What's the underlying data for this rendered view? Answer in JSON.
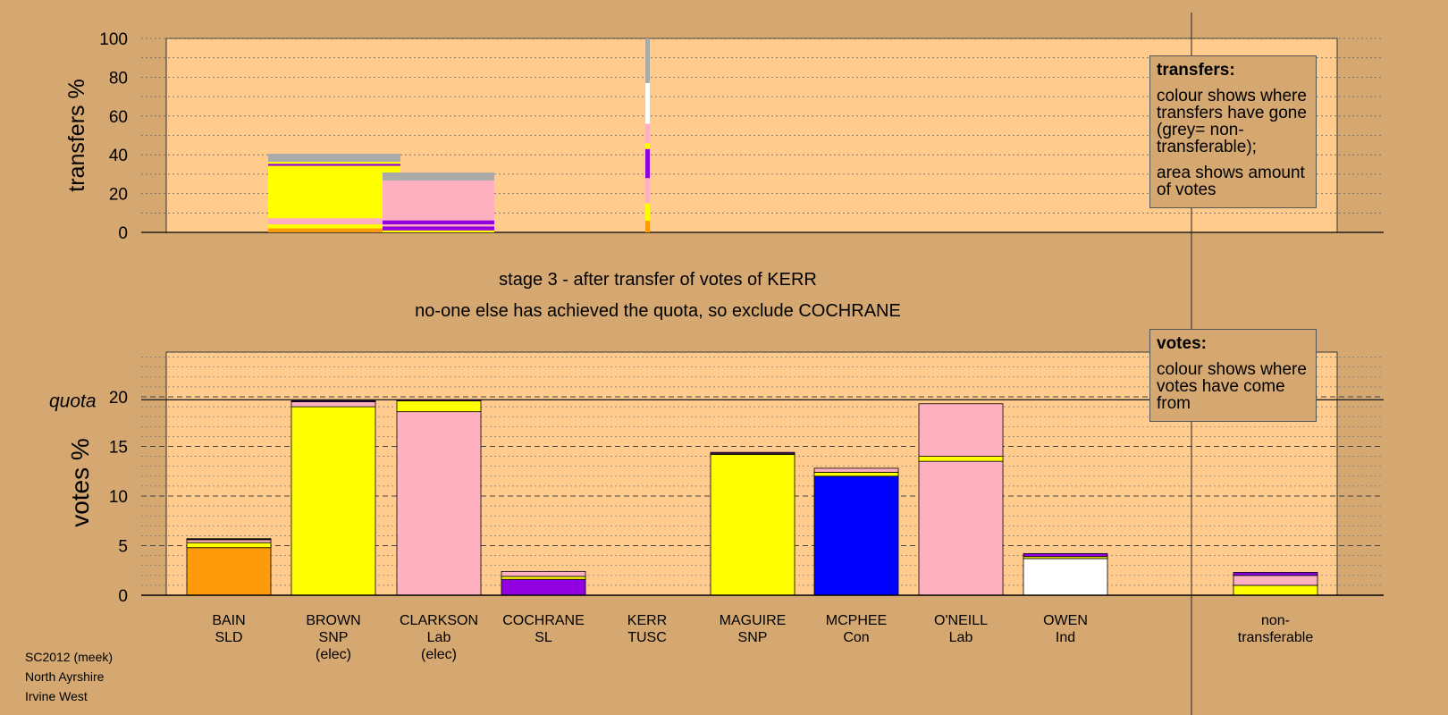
{
  "chart_data": {
    "type": "bar",
    "stage_title": "stage 3 - after transfer of votes of KERR",
    "stage_subtitle": "no-one else has achieved the quota, so exclude COCHRANE",
    "colors": {
      "SLD": "#ff9a0a",
      "SNP": "#ffff00",
      "Lab": "#ffb0c0",
      "SL": "#9000e0",
      "TUSC": "#ff80ff",
      "Con": "#0000ff",
      "Ind": "#ffffff",
      "nontransferable": "#aaaaaa",
      "plot_bg": "#ffcc8e",
      "page_bg": "#d5a872"
    },
    "candidates": [
      {
        "name": "BAIN",
        "party": "SLD",
        "note": ""
      },
      {
        "name": "BROWN",
        "party": "SNP",
        "note": "(elec)"
      },
      {
        "name": "CLARKSON",
        "party": "Lab",
        "note": "(elec)"
      },
      {
        "name": "COCHRANE",
        "party": "SL",
        "note": ""
      },
      {
        "name": "KERR",
        "party": "TUSC",
        "note": ""
      },
      {
        "name": "MAGUIRE",
        "party": "SNP",
        "note": ""
      },
      {
        "name": "MCPHEE",
        "party": "Con",
        "note": ""
      },
      {
        "name": "O'NEILL",
        "party": "Lab",
        "note": ""
      },
      {
        "name": "OWEN",
        "party": "Ind",
        "note": ""
      },
      {
        "name": "non-",
        "party": "transferable",
        "note": ""
      }
    ],
    "votes_panel": {
      "ylabel": "votes %",
      "quota_label": "quota",
      "quota": 19.7,
      "ylim": [
        0,
        25
      ],
      "yticks": [
        0,
        5,
        10,
        15,
        20
      ],
      "bars": [
        [
          {
            "color": "SLD",
            "value": 4.8
          },
          {
            "color": "SNP",
            "value": 0.5
          },
          {
            "color": "Lab",
            "value": 0.3
          },
          {
            "color": "SL",
            "value": 0.05
          },
          {
            "color": "TUSC",
            "value": 0.05
          }
        ],
        [
          {
            "color": "SNP",
            "value": 19.0
          },
          {
            "color": "Lab",
            "value": 0.5
          },
          {
            "color": "SL",
            "value": 0.1
          }
        ],
        [
          {
            "color": "Lab",
            "value": 18.5
          },
          {
            "color": "SNP",
            "value": 1.1
          },
          {
            "color": "SL",
            "value": 0.1
          }
        ],
        [
          {
            "color": "SL",
            "value": 1.6
          },
          {
            "color": "SNP",
            "value": 0.3
          },
          {
            "color": "Lab",
            "value": 0.5
          }
        ],
        [],
        [
          {
            "color": "SNP",
            "value": 14.2
          },
          {
            "color": "Lab",
            "value": 0.1
          },
          {
            "color": "SL",
            "value": 0.1
          }
        ],
        [
          {
            "color": "Con",
            "value": 12.0
          },
          {
            "color": "SNP",
            "value": 0.4
          },
          {
            "color": "Lab",
            "value": 0.4
          }
        ],
        [
          {
            "color": "Lab",
            "value": 13.5
          },
          {
            "color": "SNP",
            "value": 0.5
          },
          {
            "color": "Lab",
            "value": 5.3
          }
        ],
        [
          {
            "color": "Ind",
            "value": 3.7
          },
          {
            "color": "SNP",
            "value": 0.2
          },
          {
            "color": "SL",
            "value": 0.3
          }
        ],
        [],
        [
          {
            "color": "SNP",
            "value": 1.0
          },
          {
            "color": "Lab",
            "value": 1.0
          },
          {
            "color": "SL",
            "value": 0.3
          }
        ]
      ]
    },
    "transfers_panel": {
      "ylabel": "transfers %",
      "ylim": [
        0,
        100
      ],
      "yticks": [
        0,
        20,
        40,
        60,
        80,
        100
      ],
      "kerr_column": [
        {
          "color": "SLD",
          "value": 6
        },
        {
          "color": "SNP",
          "value": 9
        },
        {
          "color": "Lab",
          "value": 13
        },
        {
          "color": "SL",
          "value": 15
        },
        {
          "color": "SNP",
          "value": 3
        },
        {
          "color": "Lab",
          "value": 10
        },
        {
          "color": "Ind",
          "value": 21
        },
        {
          "color": "nontransferable",
          "value": 23
        }
      ],
      "transfer_blocks": [
        {
          "candidate": "BAIN",
          "value": 0.2,
          "stack": [
            {
              "color": "SLD",
              "value": 2
            },
            {
              "color": "SNP",
              "value": 2
            },
            {
              "color": "Lab",
              "value": 3
            },
            {
              "color": "SNP",
              "value": 26
            },
            {
              "color": "SL",
              "value": 1
            },
            {
              "color": "SNP",
              "value": 1
            },
            {
              "color": "nontransferable",
              "value": 4
            }
          ]
        },
        {
          "candidate": "CLARKSON",
          "value": 1.1,
          "stack": [
            {
              "color": "SNP",
              "value": 1
            },
            {
              "color": "SL",
              "value": 2
            },
            {
              "color": "Lab",
              "value": 1
            },
            {
              "color": "SL",
              "value": 2
            },
            {
              "color": "Lab",
              "value": 20
            },
            {
              "color": "nontransferable",
              "value": 4
            }
          ]
        }
      ]
    },
    "transfers_legend": {
      "title": "transfers:",
      "line1": "colour shows where transfers have gone (grey= non-transferable);",
      "line2": "area shows amount of votes"
    },
    "votes_legend": {
      "title": "votes:",
      "line1": "colour shows where votes have come from"
    }
  },
  "footer": {
    "line1": "SC2012 (meek)",
    "line2": "North Ayrshire",
    "line3": "Irvine West"
  }
}
